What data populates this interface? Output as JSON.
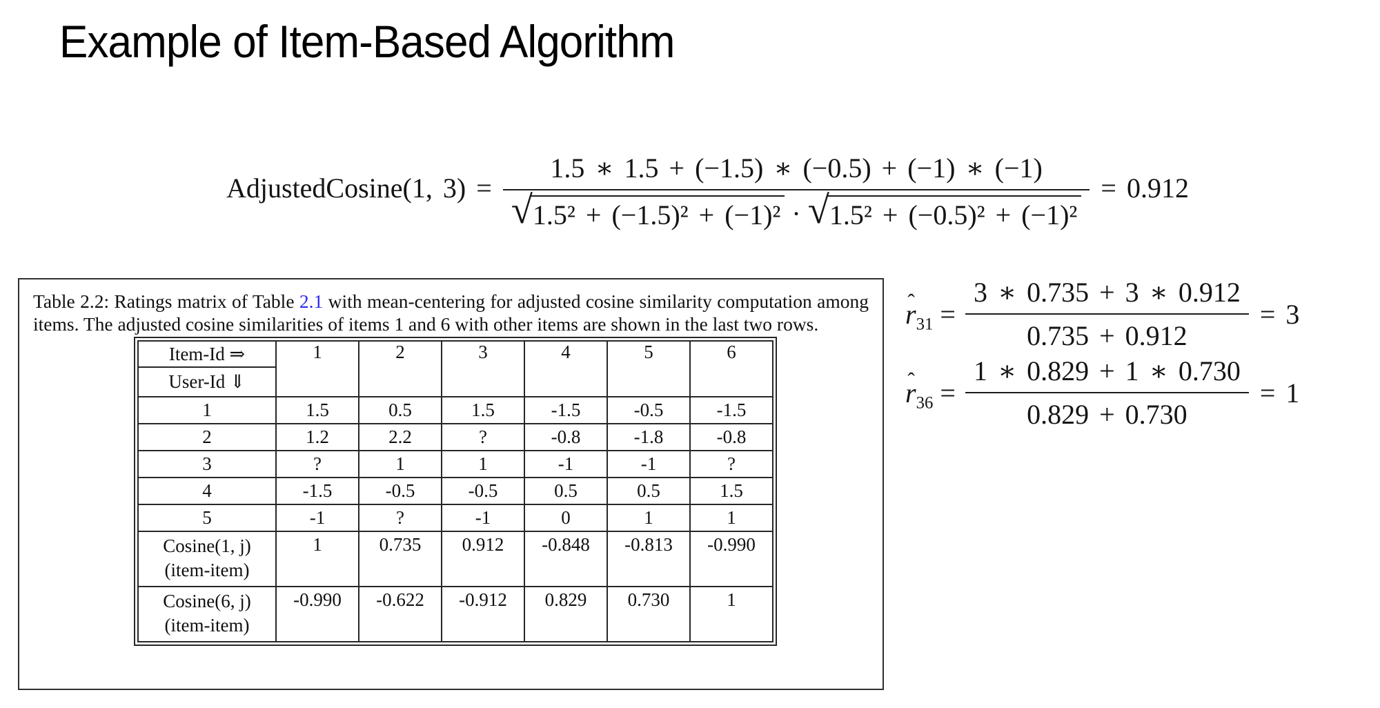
{
  "title": "Example of Item-Based Algorithm",
  "main_formula": {
    "lhs": "AdjustedCosine(1, 3) =",
    "numerator": "1.5 ∗ 1.5 + (−1.5) ∗ (−0.5) + (−1) ∗ (−1)",
    "radical_sign": "√",
    "sqrt1": "1.5² + (−1.5)² + (−1)²",
    "cdot": "·",
    "sqrt2": "1.5² + (−0.5)² + (−1)²",
    "result": "= 0.912"
  },
  "figure": {
    "caption": {
      "before_link": "Table 2.2: Ratings matrix of Table ",
      "link": "2.1",
      "after_link": " with mean-centering for adjusted cosine similarity computation among items. The adjusted cosine similarities of items 1 and 6 with other items are shown in the last two rows."
    },
    "table": {
      "corner_top": "Item-Id ⇒",
      "corner_bottom": "User-Id ⇓",
      "item_ids": [
        "1",
        "2",
        "3",
        "4",
        "5",
        "6"
      ],
      "user_rows": [
        {
          "label": "1",
          "values": [
            "1.5",
            "0.5",
            "1.5",
            "-1.5",
            "-0.5",
            "-1.5"
          ]
        },
        {
          "label": "2",
          "values": [
            "1.2",
            "2.2",
            "?",
            "-0.8",
            "-1.8",
            "-0.8"
          ]
        },
        {
          "label": "3",
          "values": [
            "?",
            "1",
            "1",
            "-1",
            "-1",
            "?"
          ]
        },
        {
          "label": "4",
          "values": [
            "-1.5",
            "-0.5",
            "-0.5",
            "0.5",
            "0.5",
            "1.5"
          ]
        },
        {
          "label": "5",
          "values": [
            "-1",
            "?",
            "-1",
            "0",
            "1",
            "1"
          ]
        }
      ],
      "cosine_rows": [
        {
          "label_line1": "Cosine(1, j)",
          "label_line2": "(item-item)",
          "values": [
            "1",
            "0.735",
            "0.912",
            "-0.848",
            "-0.813",
            "-0.990"
          ]
        },
        {
          "label_line1": "Cosine(6, j)",
          "label_line2": "(item-item)",
          "values": [
            "-0.990",
            "-0.622",
            "-0.912",
            "0.829",
            "0.730",
            "1"
          ]
        }
      ]
    }
  },
  "predictions": [
    {
      "var": "r",
      "hat": "ˆ",
      "sub": "31",
      "eq": "=",
      "numerator": "3 ∗ 0.735 + 3 ∗ 0.912",
      "denominator": "0.735 + 0.912",
      "result": "= 3"
    },
    {
      "var": "r",
      "hat": "ˆ",
      "sub": "36",
      "eq": "=",
      "numerator": "1 ∗ 0.829 + 1 ∗ 0.730",
      "denominator": "0.829 + 0.730",
      "result": "= 1"
    }
  ]
}
